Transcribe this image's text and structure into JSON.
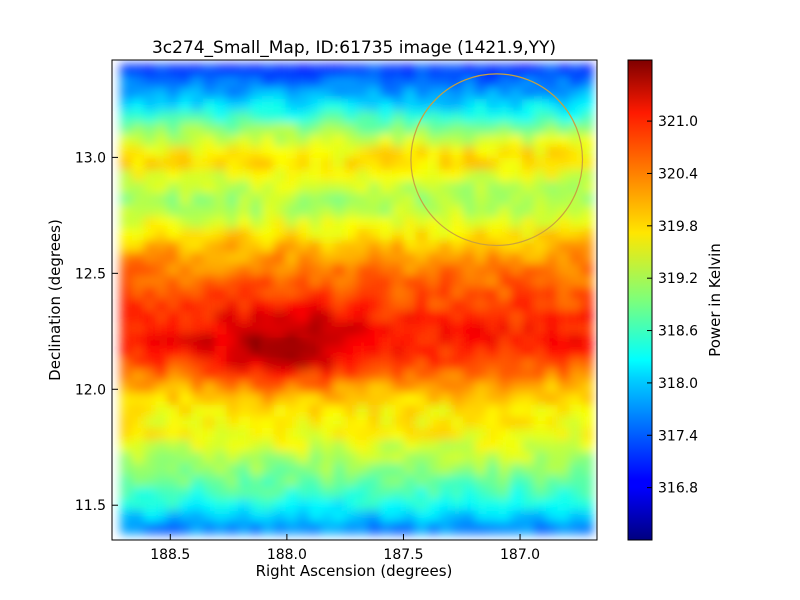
{
  "chart_data": {
    "type": "heatmap",
    "title": "3c274_Small_Map, ID:61735 image (1421.9,YY)",
    "xlabel": "Right Ascension (degrees)",
    "ylabel": "Declination (degrees)",
    "xlim": [
      188.75,
      186.67
    ],
    "ylim": [
      11.35,
      13.42
    ],
    "x_ticks": [
      188.5,
      188.0,
      187.5,
      187.0
    ],
    "x_tick_labels": [
      "188.5",
      "188.0",
      "187.5",
      "187.0"
    ],
    "y_ticks": [
      11.5,
      12.0,
      12.5,
      13.0
    ],
    "y_tick_labels": [
      "11.5",
      "12.0",
      "12.5",
      "13.0"
    ],
    "colorbar": {
      "label": "Power in Kelvin",
      "colormap": "jet",
      "range": [
        316.2,
        321.7
      ],
      "ticks": [
        316.8,
        317.4,
        318.0,
        318.6,
        319.2,
        319.8,
        320.4,
        321.0
      ],
      "tick_labels": [
        "316.8",
        "317.4",
        "318.0",
        "318.6",
        "319.2",
        "319.8",
        "320.4",
        "321.0"
      ]
    },
    "declination_profile": {
      "dec": [
        13.38,
        13.3,
        13.2,
        13.1,
        13.0,
        12.9,
        12.8,
        12.7,
        12.6,
        12.5,
        12.4,
        12.3,
        12.2,
        12.1,
        12.0,
        11.9,
        11.8,
        11.7,
        11.6,
        11.5,
        11.4
      ],
      "power": [
        317.2,
        317.6,
        318.3,
        319.2,
        319.9,
        319.4,
        319.1,
        319.6,
        320.1,
        320.4,
        320.6,
        320.8,
        320.9,
        320.6,
        320.0,
        319.7,
        319.6,
        319.2,
        318.8,
        318.3,
        317.6
      ]
    },
    "peak": {
      "ra": 188.0,
      "dec": 12.18,
      "power": 321.5
    },
    "circle": {
      "ra": 187.1,
      "dec": 12.99,
      "radius_deg": 0.37,
      "color": "#c8a040"
    }
  }
}
